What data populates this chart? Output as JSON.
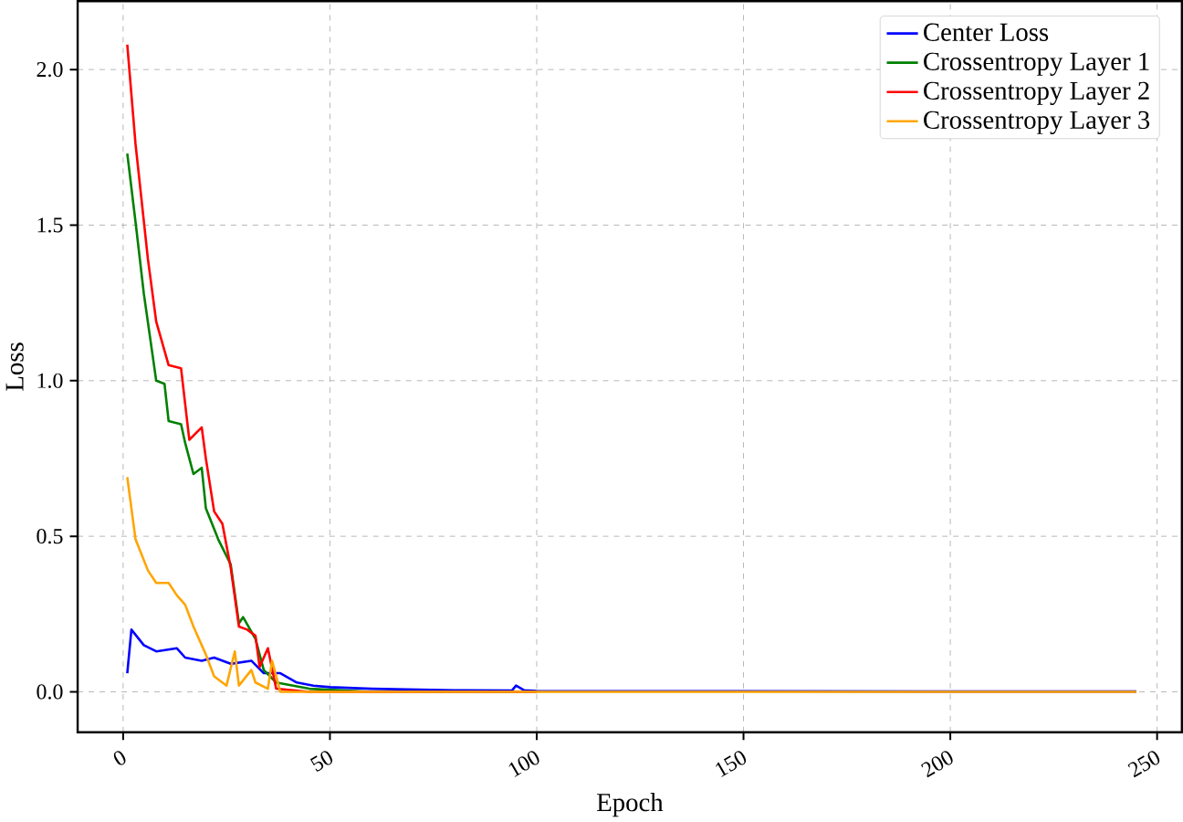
{
  "chart_data": {
    "type": "line",
    "xlabel": "Epoch",
    "ylabel": "Loss",
    "xlim": [
      -11,
      256
    ],
    "ylim": [
      -0.13,
      2.22
    ],
    "xticks": [
      0,
      50,
      100,
      150,
      200,
      250
    ],
    "yticks": [
      {
        "value": 0,
        "label": "0.0"
      },
      {
        "value": 0.5,
        "label": "0.5"
      },
      {
        "value": 1,
        "label": "1.0"
      },
      {
        "value": 1.5,
        "label": "1.5"
      },
      {
        "value": 2,
        "label": "2.0"
      }
    ],
    "grid": true,
    "legend": "top right",
    "line_style": "solid",
    "marker": "none",
    "series": [
      {
        "name": "Center Loss",
        "color": "#0000ff",
        "x": [
          1,
          2,
          5,
          8,
          13,
          15,
          19,
          22,
          26,
          31,
          34,
          38,
          42,
          46,
          50,
          60,
          80,
          94,
          95,
          97,
          100,
          150,
          200,
          245
        ],
        "values": [
          0.06,
          0.2,
          0.15,
          0.13,
          0.14,
          0.11,
          0.1,
          0.11,
          0.09,
          0.1,
          0.06,
          0.06,
          0.03,
          0.02,
          0.015,
          0.01,
          0.005,
          0.004,
          0.02,
          0.005,
          0.003,
          0.002,
          0.001,
          0.001
        ]
      },
      {
        "name": "Crossentropy Layer 1",
        "color": "#008000",
        "x": [
          1,
          3,
          5,
          8,
          10,
          11,
          14,
          15,
          17,
          19,
          20,
          23,
          26,
          28,
          29,
          32,
          34,
          37,
          45,
          60,
          100
        ],
        "values": [
          1.73,
          1.51,
          1.28,
          1.0,
          0.99,
          0.87,
          0.86,
          0.8,
          0.7,
          0.72,
          0.59,
          0.49,
          0.41,
          0.22,
          0.24,
          0.17,
          0.07,
          0.03,
          0.01,
          0.0,
          0.0
        ]
      },
      {
        "name": "Crossentropy Layer 2",
        "color": "#ff0000",
        "x": [
          1,
          3,
          6,
          8,
          11,
          14,
          16,
          19,
          20,
          22,
          24,
          26,
          28,
          30,
          32,
          33,
          35,
          37,
          45,
          100
        ],
        "values": [
          2.08,
          1.76,
          1.39,
          1.19,
          1.05,
          1.04,
          0.81,
          0.85,
          0.75,
          0.58,
          0.54,
          0.4,
          0.21,
          0.2,
          0.18,
          0.08,
          0.14,
          0.01,
          0.0,
          0.0
        ]
      },
      {
        "name": "Crossentropy Layer 3",
        "color": "#ffa500",
        "x": [
          1,
          3,
          6,
          8,
          11,
          13,
          15,
          17,
          20,
          22,
          25,
          27,
          28,
          31,
          32,
          35,
          36,
          38,
          50,
          100,
          150,
          200,
          245
        ],
        "values": [
          0.69,
          0.49,
          0.39,
          0.35,
          0.35,
          0.31,
          0.28,
          0.21,
          0.12,
          0.05,
          0.02,
          0.13,
          0.02,
          0.07,
          0.03,
          0.01,
          0.1,
          0.0,
          0.0,
          0.0,
          0.0,
          0.0,
          0.0
        ]
      }
    ]
  }
}
